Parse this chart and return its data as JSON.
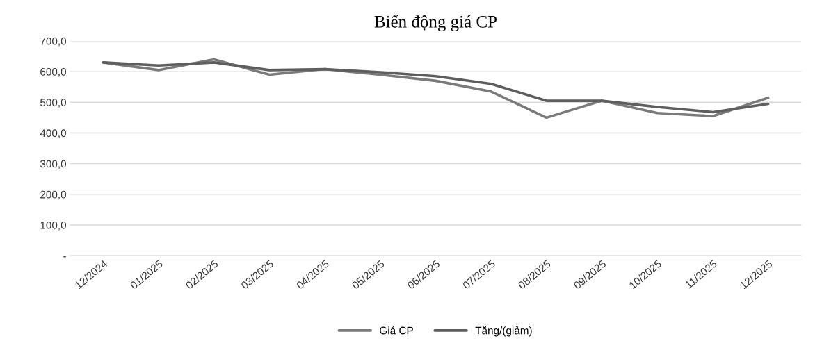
{
  "chart_data": {
    "type": "line",
    "title": "Biến động giá CP",
    "categories": [
      "12/2024",
      "01/2025",
      "02/2025",
      "03/2025",
      "04/2025",
      "05/2025",
      "06/2025",
      "07/2025",
      "08/2025",
      "09/2025",
      "10/2025",
      "11/2025",
      "12/2025"
    ],
    "series": [
      {
        "name": "Giá CP",
        "color": "#7a7a7a",
        "values": [
          630,
          605,
          640,
          590,
          608,
          590,
          570,
          535,
          450,
          505,
          465,
          455,
          515
        ]
      },
      {
        "name": "Tăng/(giảm)",
        "color": "#5e5e5e",
        "values": [
          630,
          620,
          630,
          605,
          608,
          598,
          585,
          560,
          505,
          505,
          485,
          468,
          495
        ]
      }
    ],
    "ylim": [
      0,
      700
    ],
    "yticks": [
      {
        "value": 0,
        "label": "-"
      },
      {
        "value": 100,
        "label": "100,0"
      },
      {
        "value": 200,
        "label": "200,0"
      },
      {
        "value": 300,
        "label": "300,0"
      },
      {
        "value": 400,
        "label": "400,0"
      },
      {
        "value": 500,
        "label": "500,0"
      },
      {
        "value": 600,
        "label": "600,0"
      },
      {
        "value": 700,
        "label": "700,0"
      }
    ],
    "grid": "y",
    "legend": "bottom",
    "marker": "none",
    "line_style": "solid"
  }
}
